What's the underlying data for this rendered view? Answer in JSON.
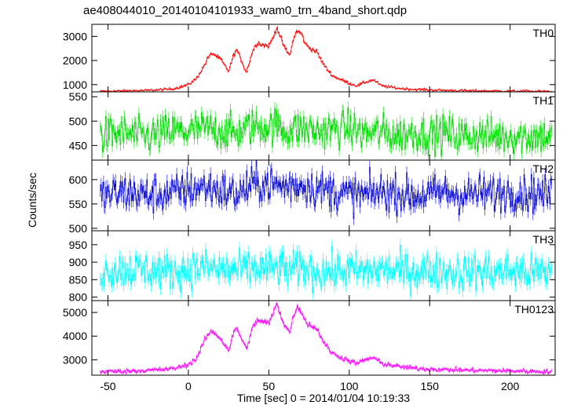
{
  "chart_data": {
    "type": "line",
    "title": "ae408044010_20140104101933_wam0_trn_4band_short.qdp",
    "xlabel": "Time [sec] 0 = 2014/01/04 10:19:33",
    "ylabel": "Counts/sec",
    "xlim": [
      -60,
      228
    ],
    "x_ticks": [
      -50,
      0,
      50,
      100,
      150,
      200
    ],
    "grid": false,
    "panels": [
      {
        "name": "TH0",
        "color": "#ff0000",
        "ylim": [
          700,
          3500
        ],
        "y_ticks": [
          1000,
          2000,
          3000
        ],
        "x": [
          -55,
          -40,
          -25,
          -10,
          -5,
          0,
          5,
          10,
          12,
          15,
          20,
          22,
          25,
          28,
          30,
          33,
          36,
          40,
          43,
          46,
          50,
          53,
          55,
          57,
          60,
          63,
          65,
          67,
          70,
          73,
          76,
          80,
          83,
          86,
          90,
          95,
          100,
          105,
          110,
          115,
          120,
          130,
          140,
          160,
          180,
          200,
          225
        ],
        "values": [
          720,
          740,
          760,
          820,
          900,
          1000,
          1250,
          1800,
          2100,
          2300,
          2050,
          1850,
          1550,
          2200,
          2450,
          2000,
          1500,
          2400,
          2750,
          2650,
          2600,
          3000,
          3400,
          3000,
          2500,
          2200,
          2800,
          3200,
          3150,
          2650,
          2500,
          2350,
          1950,
          1650,
          1350,
          1200,
          1050,
          950,
          1100,
          1200,
          950,
          850,
          800,
          760,
          740,
          730,
          720
        ]
      },
      {
        "name": "TH1",
        "color": "#00dd00",
        "ylim": [
          420,
          560
        ],
        "y_ticks": [
          450,
          500,
          550
        ],
        "x": [
          -55,
          -40,
          -25,
          -10,
          0,
          10,
          20,
          30,
          40,
          50,
          55,
          60,
          70,
          80,
          90,
          100,
          110,
          120,
          130,
          140,
          150,
          160,
          170,
          180,
          190,
          200,
          210,
          225
        ],
        "values": [
          470,
          475,
          468,
          480,
          478,
          485,
          480,
          476,
          490,
          488,
          492,
          480,
          485,
          478,
          482,
          486,
          474,
          478,
          470,
          476,
          472,
          475,
          470,
          472,
          468,
          470,
          468,
          470
        ]
      },
      {
        "name": "TH2",
        "color": "#0000ff",
        "ylim": [
          495,
          640
        ],
        "y_ticks": [
          500,
          550,
          600
        ],
        "x": [
          -55,
          -40,
          -25,
          -10,
          0,
          10,
          20,
          30,
          40,
          50,
          55,
          60,
          70,
          80,
          90,
          100,
          110,
          120,
          130,
          140,
          150,
          160,
          170,
          180,
          190,
          200,
          210,
          225
        ],
        "values": [
          565,
          575,
          568,
          572,
          580,
          585,
          578,
          570,
          590,
          592,
          588,
          585,
          590,
          582,
          575,
          570,
          568,
          575,
          572,
          566,
          570,
          575,
          568,
          572,
          570,
          575,
          572,
          570
        ]
      },
      {
        "name": "TH3",
        "color": "#00ffff",
        "ylim": [
          790,
          990
        ],
        "y_ticks": [
          800,
          850,
          900,
          950
        ],
        "x": [
          -55,
          -40,
          -25,
          -10,
          0,
          10,
          20,
          30,
          40,
          50,
          55,
          60,
          70,
          80,
          90,
          100,
          110,
          120,
          130,
          140,
          150,
          160,
          170,
          180,
          190,
          200,
          210,
          225
        ],
        "values": [
          875,
          880,
          878,
          872,
          880,
          885,
          878,
          876,
          882,
          880,
          884,
          878,
          880,
          876,
          872,
          878,
          874,
          880,
          876,
          872,
          876,
          874,
          870,
          876,
          872,
          874,
          870,
          872
        ]
      },
      {
        "name": "TH0123",
        "color": "#ff00ff",
        "ylim": [
          2350,
          5500
        ],
        "y_ticks": [
          3000,
          4000,
          5000
        ],
        "x": [
          -55,
          -40,
          -25,
          -10,
          -5,
          0,
          5,
          10,
          12,
          15,
          20,
          22,
          25,
          28,
          30,
          33,
          36,
          40,
          43,
          46,
          50,
          53,
          55,
          57,
          60,
          63,
          65,
          67,
          70,
          73,
          76,
          80,
          83,
          86,
          90,
          95,
          100,
          105,
          110,
          115,
          120,
          130,
          140,
          160,
          180,
          200,
          225
        ],
        "values": [
          2500,
          2520,
          2550,
          2620,
          2700,
          2800,
          3050,
          3800,
          4050,
          4200,
          3900,
          3700,
          3400,
          4100,
          4350,
          3900,
          3450,
          4350,
          4700,
          4600,
          4550,
          5000,
          5400,
          4950,
          4450,
          4150,
          4750,
          5200,
          5100,
          4600,
          4450,
          4300,
          3900,
          3550,
          3250,
          3100,
          2950,
          2850,
          3000,
          3100,
          2850,
          2720,
          2640,
          2580,
          2550,
          2530,
          2500
        ]
      }
    ]
  }
}
